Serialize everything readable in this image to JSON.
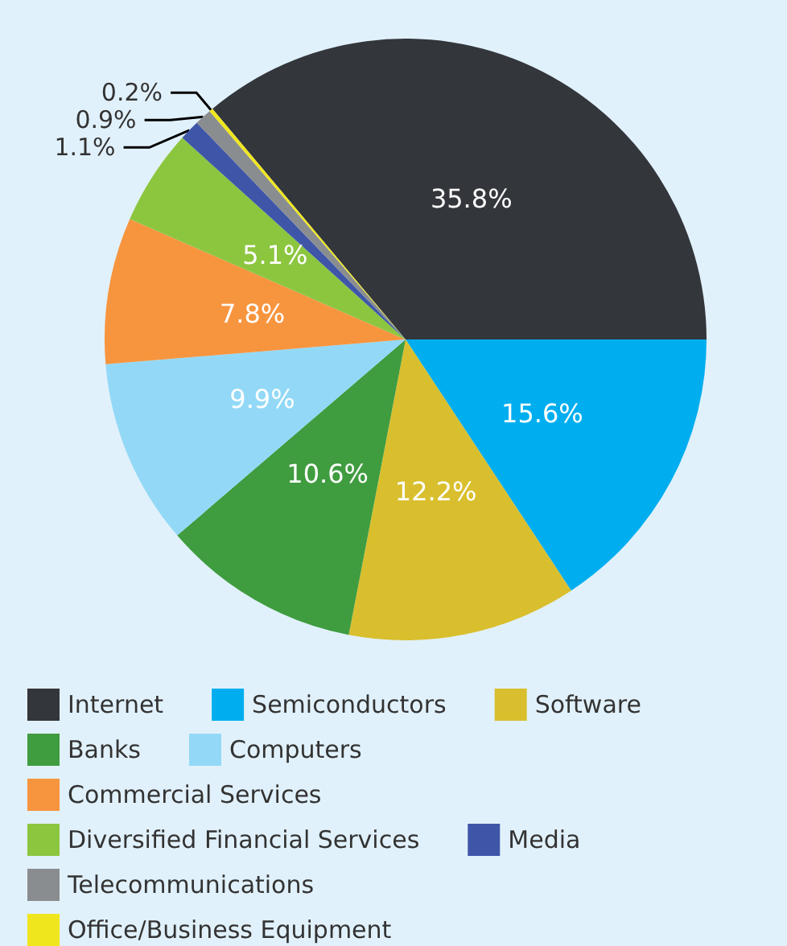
{
  "chart_data": {
    "type": "pie",
    "categories": [
      "Internet",
      "Semiconductors",
      "Software",
      "Banks",
      "Computers",
      "Commercial Services",
      "Diversified Financial Services",
      "Media",
      "Telecommunications",
      "Office/Business Equipment"
    ],
    "values": [
      35.8,
      15.6,
      12.2,
      10.6,
      9.9,
      7.8,
      5.1,
      1.1,
      0.9,
      0.2
    ],
    "value_labels": [
      "35.8%",
      "15.6%",
      "12.2%",
      "10.6%",
      "9.9%",
      "7.8%",
      "5.1%",
      "1.1%",
      "0.9%",
      "0.2%"
    ],
    "colors": [
      "#33363b",
      "#00aeef",
      "#d9bf2e",
      "#3f9c3f",
      "#93d9f7",
      "#f7953f",
      "#8cc63f",
      "#3f56a8",
      "#8a8d8f",
      "#f0e61e"
    ],
    "legend": "bottom"
  }
}
